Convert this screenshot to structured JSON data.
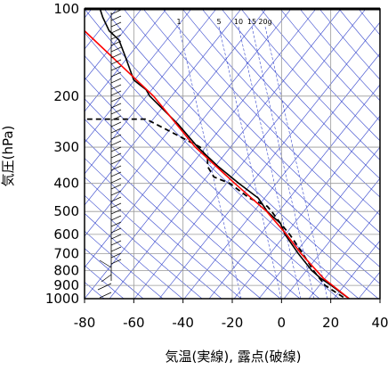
{
  "chart_data": {
    "type": "skewt",
    "xlabel": "気温(実線), 露点(破線)",
    "ylabel": "気圧(hPa)",
    "xlim": [
      -80,
      40
    ],
    "xticks": [
      -80,
      -60,
      -40,
      -20,
      0,
      20,
      40
    ],
    "ylim": [
      1000,
      100
    ],
    "yticks": [
      100,
      200,
      300,
      400,
      500,
      600,
      700,
      800,
      900,
      1000
    ],
    "log_y": true,
    "grid": true,
    "annotations": [
      "1",
      "5",
      "10",
      "15",
      "20g"
    ],
    "series": [
      {
        "color": "#000000",
        "dash": false,
        "x": [
          -73.7,
          -72.6,
          -70,
          -66,
          -63.6,
          -60,
          -55,
          -53.5,
          -42,
          -34,
          -25.7,
          -17.3,
          -9.4,
          -5.8,
          -0.4,
          1.4,
          6.9,
          12.3,
          15.9,
          20.2,
          23.9,
          27.5
        ],
        "y": [
          100,
          107,
          119,
          128,
          145,
          176,
          190,
          200,
          250,
          300,
          350,
          400,
          450,
          500,
          550,
          600,
          700,
          800,
          850,
          900,
          950,
          1000
        ]
      },
      {
        "color": "#000000",
        "dash": true,
        "x": [
          -79,
          -55,
          -47,
          -33,
          -30,
          -30,
          -27.5,
          -21,
          -13,
          -5.8,
          -4,
          -0.4,
          3.3,
          8.7,
          13,
          17.7,
          26
        ],
        "y": [
          240,
          240,
          260,
          300,
          330,
          350,
          380,
          400,
          450,
          480,
          500,
          550,
          600,
          700,
          800,
          900,
          1000
        ]
      },
      {
        "color": "#ff0000",
        "dash": false,
        "x": [
          -80,
          -52,
          -35,
          -19,
          -6,
          2,
          8,
          17,
          27.5
        ],
        "y": [
          119,
          200,
          300,
          400,
          500,
          600,
          700,
          850,
          1000
        ]
      }
    ]
  }
}
